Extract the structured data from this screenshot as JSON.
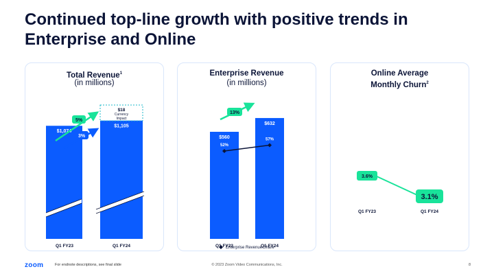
{
  "slide": {
    "title": "Continued top-line growth with positive trends in Enterprise and Online",
    "footer_logo": "zoom",
    "footer_note": "For endnote descriptions, see final slide",
    "footer_copyright": "© 2023 Zoom Video Communications, Inc.",
    "page_number": "8"
  },
  "colors": {
    "bar": "#0b5cff",
    "growth": "#19e39a",
    "navy": "#0b1437",
    "panel_border": "#d9e6fb"
  },
  "panels": {
    "revenue": {
      "title": "Total Revenue",
      "title_sup": "1",
      "subtitle": "(in millions)"
    },
    "enterprise": {
      "title": "Enterprise Revenue",
      "subtitle": "(in millions)"
    },
    "churn": {
      "title_line1": "Online Average",
      "title_line2": "Monthly Churn",
      "title_sup": "2"
    }
  },
  "chart_data": [
    {
      "type": "bar",
      "title": "Total Revenue",
      "subtitle": "(in millions)",
      "categories": [
        "Q1 FY23",
        "Q1 FY24"
      ],
      "values": [
        1074,
        1105
      ],
      "value_labels": [
        "$1,074",
        "$1,105"
      ],
      "axis_break": true,
      "currency_impact": {
        "value": 18,
        "label": "$18",
        "text_line1": "Currency",
        "text_line2": "Impact"
      },
      "annotations": [
        {
          "label": "5%",
          "type": "growth-constant-currency"
        },
        {
          "label": "3%",
          "type": "growth-reported"
        }
      ]
    },
    {
      "type": "bar",
      "title": "Enterprise Revenue",
      "subtitle": "(in millions)",
      "categories": [
        "Q1 FY23",
        "Q1 FY24"
      ],
      "values": [
        560,
        632
      ],
      "value_labels": [
        "$560",
        "$632"
      ],
      "ylim": [
        0,
        700
      ],
      "growth_label": "13%",
      "line_series": {
        "name": "Enterprise Revenue Share",
        "values": [
          52,
          57
        ],
        "labels": [
          "52%",
          "57%"
        ]
      }
    },
    {
      "type": "line",
      "title": "Online Average Monthly Churn",
      "categories": [
        "Q1 FY23",
        "Q1 FY24"
      ],
      "values": [
        3.6,
        3.1
      ],
      "value_labels": [
        "3.6%",
        "3.1%"
      ],
      "ylim": [
        2.5,
        4.5
      ]
    }
  ]
}
